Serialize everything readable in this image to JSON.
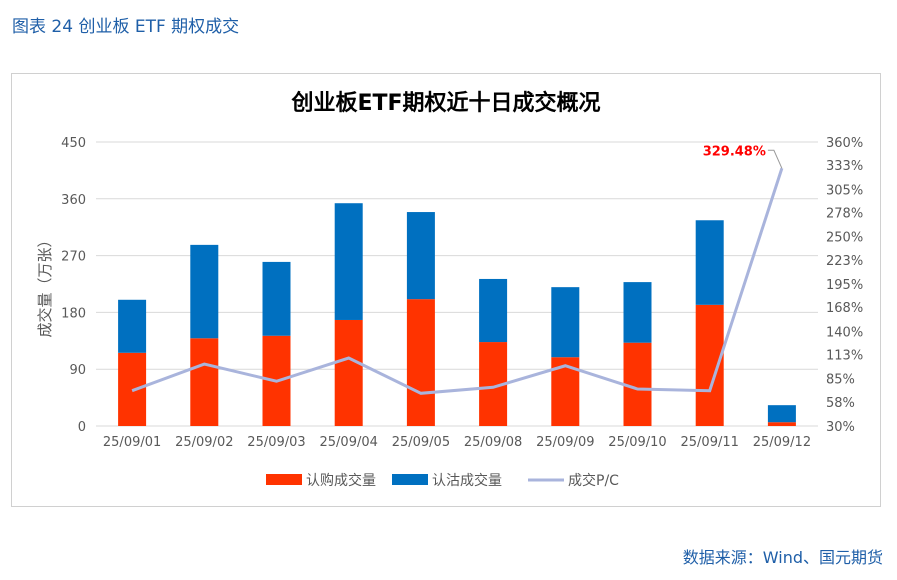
{
  "figure_title": "图表 24  创业板 ETF 期权成交",
  "source": "数据来源：Wind、国元期货",
  "chart_data": {
    "type": "bar",
    "title": "创业板ETF期权近十日成交概况",
    "ylabel": "成交量（万张）",
    "ylim": [
      0,
      450
    ],
    "y_ticks": [
      "0",
      "90",
      "180",
      "270",
      "360",
      "450"
    ],
    "y2lim": [
      30,
      360
    ],
    "y2_ticks": [
      "30%",
      "58%",
      "85%",
      "113%",
      "140%",
      "168%",
      "195%",
      "223%",
      "250%",
      "278%",
      "305%",
      "333%",
      "360%"
    ],
    "categories": [
      "25/09/01",
      "25/09/02",
      "25/09/03",
      "25/09/04",
      "25/09/05",
      "25/09/08",
      "25/09/09",
      "25/09/10",
      "25/09/11",
      "25/09/12"
    ],
    "series": [
      {
        "name": "认购成交量",
        "type": "bar",
        "color": "#ff3300",
        "values": [
          116,
          139,
          143,
          168,
          201,
          133,
          109,
          132,
          192,
          6
        ]
      },
      {
        "name": "认沽成交量",
        "type": "bar",
        "color": "#0070c0",
        "values": [
          84,
          148,
          117,
          185,
          138,
          100,
          111,
          96,
          134,
          27
        ]
      },
      {
        "name": "成交P/C",
        "type": "line",
        "axis": "right",
        "color": "#a9b4dc",
        "values": [
          71,
          102,
          82,
          109,
          68,
          75,
          100,
          73,
          71,
          329.48
        ]
      }
    ],
    "annotation": "329.48%",
    "legend": "bottom"
  }
}
